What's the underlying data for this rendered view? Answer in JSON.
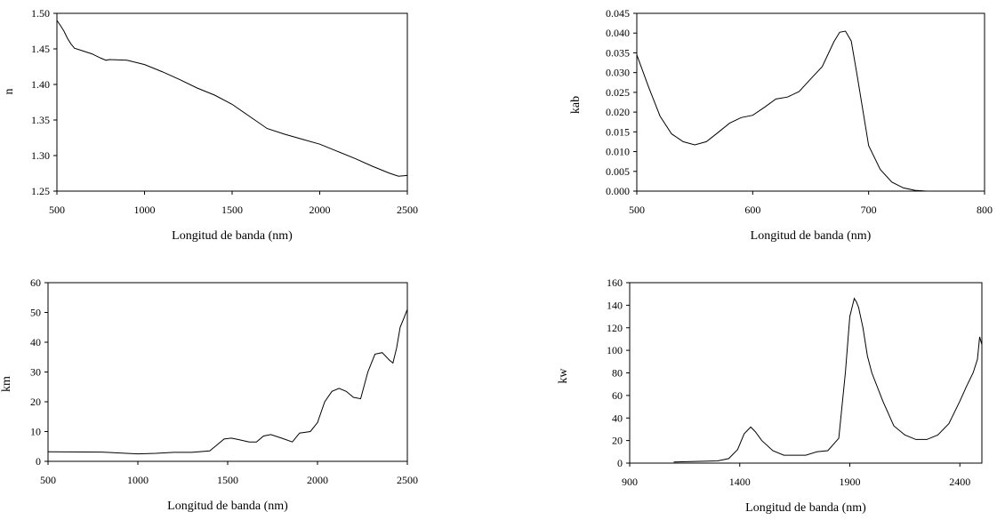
{
  "chart_data": [
    {
      "id": "n",
      "type": "line",
      "xlabel": "Longitud de banda (nm)",
      "ylabel": "n",
      "xlim": [
        500,
        2500
      ],
      "ylim": [
        1.25,
        1.5
      ],
      "xticks": [
        500,
        1000,
        1500,
        2000,
        2500
      ],
      "xtick_labels": [
        "500",
        "1000",
        "1500",
        "2000",
        "2500"
      ],
      "yticks": [
        1.25,
        1.3,
        1.35,
        1.4,
        1.45,
        1.5
      ],
      "ytick_labels": [
        "1.25",
        "1.30",
        "1.35",
        "1.40",
        "1.45",
        "1.50"
      ],
      "series": [
        {
          "name": "n",
          "x": [
            500,
            520,
            540,
            560,
            580,
            600,
            650,
            700,
            750,
            780,
            800,
            900,
            1000,
            1100,
            1200,
            1300,
            1400,
            1500,
            1600,
            1700,
            1800,
            1900,
            2000,
            2100,
            2200,
            2300,
            2400,
            2450,
            2500
          ],
          "y": [
            1.49,
            1.483,
            1.475,
            1.465,
            1.457,
            1.451,
            1.447,
            1.443,
            1.437,
            1.434,
            1.435,
            1.434,
            1.428,
            1.418,
            1.407,
            1.395,
            1.385,
            1.372,
            1.355,
            1.338,
            1.33,
            1.323,
            1.316,
            1.306,
            1.296,
            1.285,
            1.275,
            1.271,
            1.272
          ]
        }
      ]
    },
    {
      "id": "kab",
      "type": "line",
      "xlabel": "Longitud de banda (nm)",
      "ylabel": "kab",
      "xlim": [
        500,
        800
      ],
      "ylim": [
        0,
        0.045
      ],
      "xticks": [
        500,
        600,
        700,
        800
      ],
      "xtick_labels": [
        "500",
        "600",
        "700",
        "800"
      ],
      "yticks": [
        0,
        0.005,
        0.01,
        0.015,
        0.02,
        0.025,
        0.03,
        0.035,
        0.04,
        0.045
      ],
      "ytick_labels": [
        "0.000",
        "0.005",
        "0.010",
        "0.015",
        "0.020",
        "0.025",
        "0.030",
        "0.035",
        "0.040",
        "0.045"
      ],
      "series": [
        {
          "name": "kab",
          "x": [
            500,
            510,
            520,
            530,
            540,
            550,
            560,
            570,
            580,
            590,
            600,
            610,
            620,
            630,
            640,
            650,
            660,
            670,
            675,
            680,
            685,
            690,
            700,
            710,
            720,
            730,
            740,
            750,
            800
          ],
          "y": [
            0.0345,
            0.0265,
            0.019,
            0.0145,
            0.0125,
            0.0117,
            0.0125,
            0.0148,
            0.0172,
            0.0186,
            0.0192,
            0.0212,
            0.0233,
            0.0238,
            0.0252,
            0.0284,
            0.0315,
            0.0378,
            0.0402,
            0.0405,
            0.038,
            0.0295,
            0.0115,
            0.0055,
            0.0023,
            0.0008,
            0.0002,
            0.0,
            0.0
          ]
        }
      ]
    },
    {
      "id": "km",
      "type": "line",
      "xlabel": "Longitud de banda (nm)",
      "ylabel": "km",
      "xlim": [
        500,
        2500
      ],
      "ylim": [
        0,
        60
      ],
      "xticks": [
        500,
        1000,
        1500,
        2000,
        2500
      ],
      "xtick_labels": [
        "500",
        "1000",
        "1500",
        "2000",
        "2500"
      ],
      "yticks": [
        0,
        10,
        20,
        30,
        40,
        50,
        60
      ],
      "ytick_labels": [
        "0",
        "10",
        "20",
        "30",
        "40",
        "50",
        "60"
      ],
      "series": [
        {
          "name": "km",
          "x": [
            500,
            800,
            1000,
            1100,
            1200,
            1300,
            1400,
            1440,
            1480,
            1520,
            1560,
            1620,
            1660,
            1700,
            1740,
            1800,
            1860,
            1900,
            1960,
            2000,
            2040,
            2080,
            2120,
            2160,
            2200,
            2240,
            2280,
            2320,
            2360,
            2400,
            2420,
            2440,
            2460,
            2480,
            2500
          ],
          "y": [
            3.2,
            3.1,
            2.5,
            2.7,
            3.0,
            3.0,
            3.5,
            5.5,
            7.5,
            7.8,
            7.3,
            6.5,
            6.5,
            8.5,
            9.0,
            7.8,
            6.5,
            9.5,
            10.0,
            13.0,
            20.0,
            23.5,
            24.5,
            23.5,
            21.5,
            21.0,
            30.0,
            36.0,
            36.5,
            34.0,
            33.0,
            38.0,
            45.0,
            48.0,
            51.0
          ]
        }
      ]
    },
    {
      "id": "kw",
      "type": "line",
      "xlabel": "Longitud de banda (nm)",
      "ylabel": "kw",
      "xlim": [
        900,
        2500
      ],
      "ylim": [
        0,
        160
      ],
      "xticks": [
        900,
        1400,
        1900,
        2400
      ],
      "xtick_labels": [
        "900",
        "1400",
        "1900",
        "2400"
      ],
      "yticks": [
        0,
        20,
        40,
        60,
        80,
        100,
        120,
        140,
        160
      ],
      "ytick_labels": [
        "0",
        "20",
        "40",
        "60",
        "80",
        "100",
        "120",
        "140",
        "160"
      ],
      "series": [
        {
          "name": "kw",
          "x": [
            1100,
            1200,
            1300,
            1350,
            1390,
            1420,
            1450,
            1470,
            1500,
            1550,
            1600,
            1700,
            1750,
            1800,
            1850,
            1880,
            1900,
            1920,
            1930,
            1940,
            1960,
            1980,
            2000,
            2050,
            2100,
            2150,
            2200,
            2250,
            2300,
            2350,
            2400,
            2430,
            2460,
            2480,
            2490,
            2500
          ],
          "y": [
            1,
            1.5,
            2,
            4,
            12,
            26,
            32,
            28,
            20,
            11,
            7,
            7,
            10,
            11,
            22,
            80,
            130,
            146,
            143,
            138,
            120,
            95,
            80,
            55,
            33,
            25,
            21,
            21,
            25,
            35,
            55,
            68,
            80,
            92,
            112,
            105
          ]
        }
      ]
    }
  ]
}
